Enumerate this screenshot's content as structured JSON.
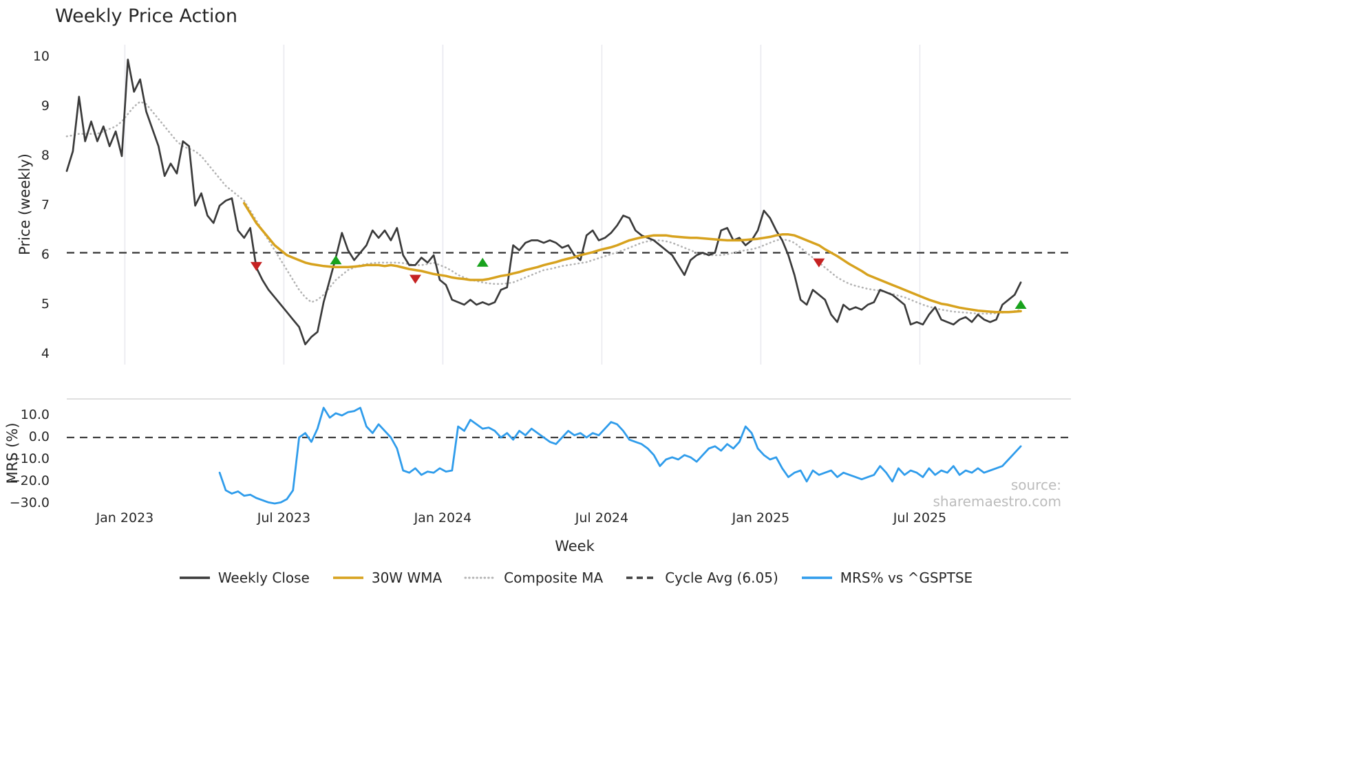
{
  "source_watermark": "source: sharemaestro.com",
  "colors": {
    "weekly_close": "#3a3a3a",
    "wma": "#d7a21e",
    "composite": "#b3b3b3",
    "cycle_avg": "#3f3f3f",
    "mrs": "#2f9ceb",
    "grid": "#e9e9ef",
    "spine": "#cccccc",
    "buy": "#18a21d",
    "sell": "#c62222"
  },
  "legend": [
    {
      "label": "Weekly Close",
      "color": "#3a3a3a",
      "style": "solid"
    },
    {
      "label": "30W WMA",
      "color": "#d7a21e",
      "style": "solid"
    },
    {
      "label": "Composite MA",
      "color": "#b3b3b3",
      "style": "dotted"
    },
    {
      "label": "Cycle Avg (6.05)",
      "color": "#3f3f3f",
      "style": "dashed"
    },
    {
      "label": "MRS% vs ^GSPTSE",
      "color": "#2f9ceb",
      "style": "solid"
    }
  ],
  "chart_data": [
    {
      "type": "line",
      "panel": "price",
      "title": "Weekly Price Action",
      "ylabel": "Price (weekly)",
      "ylim": [
        3.85,
        10.25
      ],
      "yticks": [
        4,
        5,
        6,
        7,
        8,
        9,
        10
      ],
      "grid": "vertical-light",
      "legend_position": "bottom",
      "x_unit": "week-index",
      "xticks": [
        {
          "week": 9.5,
          "label": "Jan 2023"
        },
        {
          "week": 35.5,
          "label": "Jul 2023"
        },
        {
          "week": 61.5,
          "label": "Jan 2024"
        },
        {
          "week": 87.5,
          "label": "Jul 2024"
        },
        {
          "week": 113.5,
          "label": "Jan 2025"
        },
        {
          "week": 139.5,
          "label": "Jul 2025"
        }
      ],
      "cycle_avg": 6.05,
      "series": [
        {
          "name": "Weekly Close",
          "start_week": 0,
          "values": [
            7.7,
            8.1,
            9.2,
            8.3,
            8.7,
            8.3,
            8.6,
            8.2,
            8.5,
            8.0,
            9.95,
            9.3,
            9.55,
            8.9,
            8.55,
            8.2,
            7.6,
            7.85,
            7.65,
            8.3,
            8.2,
            7.0,
            7.25,
            6.8,
            6.65,
            7.0,
            7.1,
            7.15,
            6.5,
            6.35,
            6.55,
            5.75,
            5.5,
            5.3,
            5.15,
            5.0,
            4.85,
            4.7,
            4.55,
            4.2,
            4.35,
            4.45,
            5.05,
            5.5,
            5.95,
            6.45,
            6.1,
            5.9,
            6.05,
            6.2,
            6.5,
            6.35,
            6.5,
            6.3,
            6.55,
            6.0,
            5.8,
            5.8,
            5.95,
            5.85,
            6.0,
            5.5,
            5.4,
            5.1,
            5.05,
            5.0,
            5.1,
            5.0,
            5.05,
            5.0,
            5.05,
            5.3,
            5.35,
            6.2,
            6.1,
            6.25,
            6.3,
            6.3,
            6.25,
            6.3,
            6.25,
            6.15,
            6.2,
            6.0,
            5.9,
            6.4,
            6.5,
            6.3,
            6.35,
            6.45,
            6.6,
            6.8,
            6.75,
            6.5,
            6.4,
            6.35,
            6.3,
            6.2,
            6.1,
            6.0,
            5.8,
            5.6,
            5.9,
            6.0,
            6.05,
            6.0,
            6.05,
            6.5,
            6.55,
            6.3,
            6.35,
            6.2,
            6.3,
            6.5,
            6.9,
            6.75,
            6.5,
            6.3,
            6.0,
            5.6,
            5.1,
            5.0,
            5.3,
            5.2,
            5.1,
            4.8,
            4.65,
            5.0,
            4.9,
            4.95,
            4.9,
            5.0,
            5.05,
            5.3,
            5.25,
            5.2,
            5.1,
            5.0,
            4.6,
            4.65,
            4.6,
            4.8,
            4.95,
            4.7,
            4.65,
            4.6,
            4.7,
            4.75,
            4.65,
            4.8,
            4.7,
            4.65,
            4.7,
            5.0,
            5.1,
            5.2,
            5.45
          ]
        },
        {
          "name": "30W WMA",
          "start_week": 29,
          "values": [
            7.05,
            6.85,
            6.65,
            6.5,
            6.35,
            6.2,
            6.1,
            6.0,
            5.95,
            5.9,
            5.85,
            5.82,
            5.8,
            5.78,
            5.77,
            5.76,
            5.76,
            5.76,
            5.77,
            5.78,
            5.8,
            5.8,
            5.8,
            5.78,
            5.8,
            5.78,
            5.75,
            5.72,
            5.7,
            5.68,
            5.65,
            5.62,
            5.6,
            5.58,
            5.55,
            5.53,
            5.52,
            5.5,
            5.5,
            5.5,
            5.52,
            5.55,
            5.58,
            5.6,
            5.63,
            5.66,
            5.7,
            5.73,
            5.76,
            5.8,
            5.83,
            5.86,
            5.9,
            5.93,
            5.96,
            6.0,
            6.03,
            6.06,
            6.1,
            6.13,
            6.16,
            6.2,
            6.25,
            6.3,
            6.33,
            6.36,
            6.38,
            6.4,
            6.4,
            6.4,
            6.38,
            6.37,
            6.36,
            6.35,
            6.35,
            6.34,
            6.33,
            6.32,
            6.31,
            6.3,
            6.3,
            6.3,
            6.31,
            6.32,
            6.33,
            6.35,
            6.37,
            6.4,
            6.42,
            6.42,
            6.4,
            6.35,
            6.3,
            6.25,
            6.2,
            6.12,
            6.05,
            5.98,
            5.9,
            5.82,
            5.75,
            5.68,
            5.6,
            5.55,
            5.5,
            5.45,
            5.4,
            5.35,
            5.3,
            5.25,
            5.2,
            5.15,
            5.1,
            5.06,
            5.02,
            5.0,
            4.97,
            4.94,
            4.92,
            4.9,
            4.88,
            4.87,
            4.86,
            4.85,
            4.85,
            4.85,
            4.86,
            4.87
          ]
        },
        {
          "name": "Composite MA",
          "start_week": 0,
          "values": [
            8.4,
            8.42,
            8.45,
            8.45,
            8.45,
            8.45,
            8.5,
            8.55,
            8.6,
            8.7,
            8.85,
            9.0,
            9.1,
            9.05,
            8.9,
            8.75,
            8.6,
            8.45,
            8.3,
            8.2,
            8.15,
            8.1,
            8.0,
            7.85,
            7.7,
            7.55,
            7.4,
            7.3,
            7.2,
            7.1,
            6.9,
            6.7,
            6.5,
            6.3,
            6.1,
            5.9,
            5.7,
            5.5,
            5.3,
            5.15,
            5.05,
            5.1,
            5.2,
            5.35,
            5.5,
            5.6,
            5.7,
            5.75,
            5.8,
            5.82,
            5.84,
            5.85,
            5.85,
            5.85,
            5.85,
            5.84,
            5.82,
            5.8,
            5.8,
            5.82,
            5.85,
            5.8,
            5.75,
            5.68,
            5.6,
            5.55,
            5.5,
            5.48,
            5.45,
            5.43,
            5.42,
            5.42,
            5.43,
            5.45,
            5.5,
            5.55,
            5.6,
            5.65,
            5.7,
            5.72,
            5.75,
            5.78,
            5.8,
            5.82,
            5.84,
            5.86,
            5.9,
            5.94,
            5.98,
            6.02,
            6.06,
            6.1,
            6.15,
            6.2,
            6.25,
            6.28,
            6.3,
            6.3,
            6.28,
            6.25,
            6.2,
            6.15,
            6.1,
            6.05,
            6.02,
            6.0,
            6.0,
            6.0,
            6.02,
            6.05,
            6.08,
            6.1,
            6.12,
            6.15,
            6.2,
            6.25,
            6.3,
            6.32,
            6.3,
            6.25,
            6.15,
            6.05,
            5.95,
            5.85,
            5.75,
            5.65,
            5.55,
            5.48,
            5.42,
            5.38,
            5.35,
            5.32,
            5.3,
            5.28,
            5.25,
            5.22,
            5.18,
            5.15,
            5.1,
            5.05,
            5.0,
            4.96,
            4.93,
            4.9,
            4.88,
            4.86,
            4.85,
            4.84,
            4.83,
            4.82,
            4.82,
            4.82,
            4.83,
            4.84,
            4.85,
            4.87,
            4.9
          ]
        }
      ],
      "signals": [
        {
          "week": 31,
          "price": 5.78,
          "type": "sell"
        },
        {
          "week": 44,
          "price": 5.9,
          "type": "buy"
        },
        {
          "week": 57,
          "price": 5.52,
          "type": "sell"
        },
        {
          "week": 68,
          "price": 5.85,
          "type": "buy"
        },
        {
          "week": 123,
          "price": 5.85,
          "type": "sell"
        },
        {
          "week": 156,
          "price": 5.0,
          "type": "buy"
        }
      ]
    },
    {
      "type": "line",
      "panel": "mrs",
      "ylabel": "MRS (%)",
      "xlabel": "Week",
      "ylim": [
        -33,
        16
      ],
      "yticks": [
        {
          "value": 10,
          "label": "10.0"
        },
        {
          "value": 0,
          "label": "0.0"
        },
        {
          "value": -10,
          "label": "−10.0"
        },
        {
          "value": -20,
          "label": "−20.0"
        },
        {
          "value": -30,
          "label": "−30.0"
        }
      ],
      "zero_line": 0,
      "series": [
        {
          "name": "MRS% vs ^GSPTSE",
          "start_week": 25,
          "values": [
            -16,
            -24,
            -25.5,
            -24.5,
            -26.5,
            -26,
            -27.5,
            -28.5,
            -29.5,
            -30,
            -29.5,
            -28,
            -24,
            0,
            2,
            -2,
            4,
            13.5,
            9,
            11,
            10,
            11.5,
            12,
            13.5,
            5,
            2,
            6,
            3,
            0,
            -5,
            -15,
            -16,
            -14,
            -17,
            -15.5,
            -16,
            -14,
            -15.5,
            -15,
            5,
            3,
            8,
            6,
            4,
            4.5,
            3,
            0,
            2,
            -1,
            3,
            1,
            4,
            2,
            0,
            -2,
            -3,
            0,
            3,
            1,
            2,
            0,
            2,
            1,
            4,
            7,
            6,
            3,
            -1,
            -2,
            -3,
            -5,
            -8,
            -13,
            -10,
            -9,
            -10,
            -8,
            -9,
            -11,
            -8,
            -5,
            -4,
            -6,
            -3,
            -5,
            -2,
            5,
            2,
            -5,
            -8,
            -10,
            -9,
            -14,
            -18,
            -16,
            -15,
            -20,
            -15,
            -17,
            -16,
            -15,
            -18,
            -16,
            -17,
            -18,
            -19,
            -18,
            -17,
            -13,
            -16,
            -20,
            -14,
            -17,
            -15,
            -16,
            -18,
            -14,
            -17,
            -15,
            -16,
            -13,
            -17,
            -15,
            -16,
            -14,
            -16,
            -15,
            -14,
            -13,
            -10,
            -7,
            -4
          ]
        }
      ]
    }
  ]
}
